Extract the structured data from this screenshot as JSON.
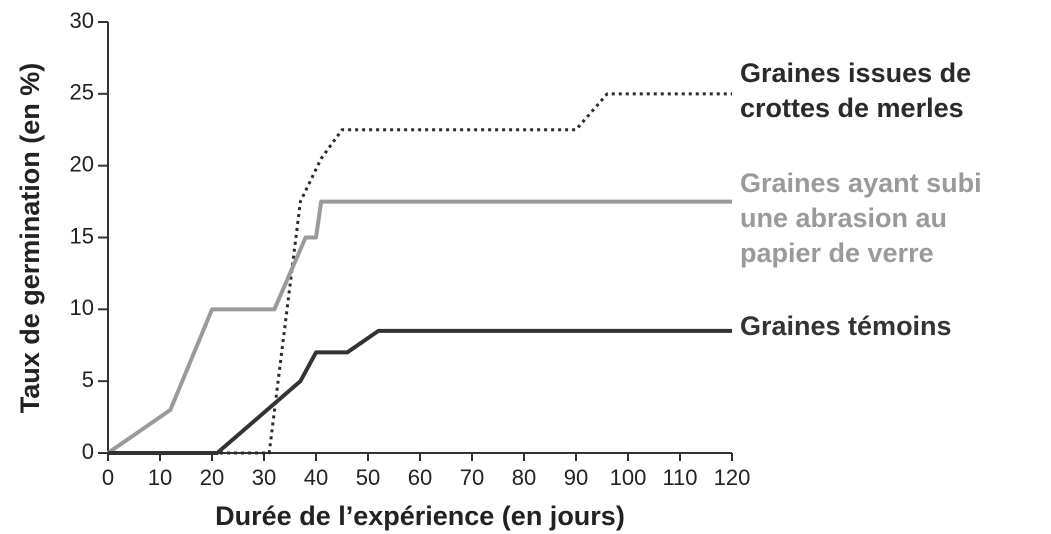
{
  "chart_data": {
    "type": "line",
    "xlabel": "Durée de l’expérience (en jours)",
    "ylabel": "Taux de germination (en %)",
    "xlim": [
      0,
      120
    ],
    "xticks": [
      0,
      10,
      20,
      30,
      40,
      50,
      60,
      70,
      80,
      90,
      100,
      110,
      120
    ],
    "ylim": [
      0,
      30
    ],
    "yticks": [
      0,
      5,
      10,
      15,
      20,
      25,
      30
    ],
    "series": [
      {
        "name": [
          "Graines issues de",
          "crottes de merles"
        ],
        "color": "#2a2a2a",
        "style": "dotted",
        "x": [
          0,
          31,
          37,
          41,
          45,
          90,
          96,
          120
        ],
        "values": [
          0,
          0,
          17.5,
          20.5,
          22.5,
          22.5,
          25,
          25
        ]
      },
      {
        "name": [
          "Graines ayant subi",
          "une abrasion au",
          "papier de verre"
        ],
        "color": "#9a9a9a",
        "style": "solid",
        "x": [
          0,
          12,
          20,
          32,
          38,
          40,
          41,
          120
        ],
        "values": [
          0,
          3,
          10,
          10,
          15,
          15,
          17.5,
          17.5
        ]
      },
      {
        "name": [
          "Graines témoins"
        ],
        "color": "#333333",
        "style": "solid",
        "x": [
          0,
          21,
          37,
          40,
          46,
          52,
          120
        ],
        "values": [
          0,
          0,
          5,
          7,
          7,
          8.5,
          8.5
        ]
      }
    ]
  }
}
